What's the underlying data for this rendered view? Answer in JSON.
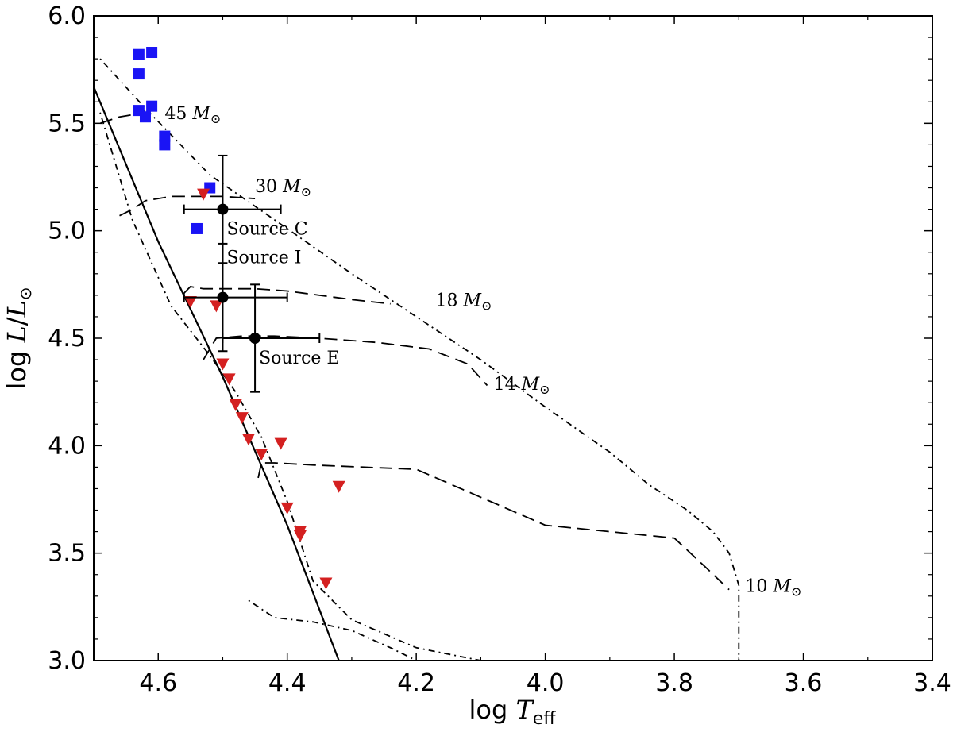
{
  "chart_data": {
    "type": "scatter",
    "title": "",
    "xlabel": {
      "prefix": "log ",
      "var": "T",
      "sub": "eff"
    },
    "ylabel": {
      "prefix": "log ",
      "var": "L",
      "mid": "/",
      "var2": "L",
      "sub": "⊙"
    },
    "xlim": [
      4.7,
      3.4
    ],
    "ylim": [
      3.0,
      6.0
    ],
    "x_ticks": [
      4.6,
      4.4,
      4.2,
      4.0,
      3.8,
      3.6,
      3.4
    ],
    "x_tick_labels": [
      "4.6",
      "4.4",
      "4.2",
      "4.0",
      "3.8",
      "3.6",
      "3.4"
    ],
    "y_ticks": [
      3.0,
      3.5,
      4.0,
      4.5,
      5.0,
      5.5,
      6.0
    ],
    "y_tick_labels": [
      "3.0",
      "3.5",
      "4.0",
      "4.5",
      "5.0",
      "5.5",
      "6.0"
    ],
    "grid": false,
    "colors": {
      "squares": "#1a14f5",
      "triangles": "#d42020",
      "sources": "#000000",
      "lines": "#000000"
    },
    "series": [
      {
        "name": "blue-squares",
        "marker": "square",
        "points": [
          {
            "x": 4.63,
            "y": 5.82
          },
          {
            "x": 4.61,
            "y": 5.83
          },
          {
            "x": 4.63,
            "y": 5.73
          },
          {
            "x": 4.63,
            "y": 5.56
          },
          {
            "x": 4.61,
            "y": 5.58
          },
          {
            "x": 4.62,
            "y": 5.53
          },
          {
            "x": 4.59,
            "y": 5.44
          },
          {
            "x": 4.59,
            "y": 5.4
          },
          {
            "x": 4.52,
            "y": 5.2
          },
          {
            "x": 4.54,
            "y": 5.01
          }
        ]
      },
      {
        "name": "red-triangles",
        "marker": "triangle-down",
        "points": [
          {
            "x": 4.53,
            "y": 5.17
          },
          {
            "x": 4.55,
            "y": 4.67
          },
          {
            "x": 4.51,
            "y": 4.65
          },
          {
            "x": 4.5,
            "y": 4.38
          },
          {
            "x": 4.49,
            "y": 4.31
          },
          {
            "x": 4.48,
            "y": 4.19
          },
          {
            "x": 4.47,
            "y": 4.13
          },
          {
            "x": 4.46,
            "y": 4.03
          },
          {
            "x": 4.41,
            "y": 4.01
          },
          {
            "x": 4.44,
            "y": 3.96
          },
          {
            "x": 4.32,
            "y": 3.81
          },
          {
            "x": 4.4,
            "y": 3.71
          },
          {
            "x": 4.38,
            "y": 3.6
          },
          {
            "x": 4.38,
            "y": 3.58
          },
          {
            "x": 4.34,
            "y": 3.36
          }
        ]
      },
      {
        "name": "sources",
        "marker": "circle",
        "points": [
          {
            "label": "Source C",
            "x": 4.5,
            "y": 5.1,
            "xerr": [
              4.56,
              4.41
            ],
            "yerr": [
              4.85,
              5.35
            ]
          },
          {
            "label": "Source I",
            "x": 4.5,
            "y": 4.69,
            "xerr": [
              4.56,
              4.4
            ],
            "yerr": [
              4.44,
              4.94
            ]
          },
          {
            "label": "Source E",
            "x": 4.45,
            "y": 4.5,
            "xerr": [
              4.5,
              4.35
            ],
            "yerr": [
              4.25,
              4.75
            ]
          }
        ]
      }
    ],
    "lines": [
      {
        "name": "zams-solid",
        "style": "solid",
        "x": [
          4.7,
          4.6,
          4.5,
          4.4,
          4.32
        ],
        "y": [
          5.67,
          4.95,
          4.32,
          3.63,
          3.0
        ]
      },
      {
        "name": "isochrone-dashdot-upper",
        "style": "dashdot",
        "x": [
          4.69,
          4.62,
          4.52,
          4.4,
          4.3,
          4.2,
          4.1,
          4.0,
          3.9,
          3.84,
          3.78,
          3.74,
          3.715,
          3.7,
          3.7
        ],
        "y": [
          5.8,
          5.57,
          5.26,
          5.01,
          4.8,
          4.6,
          4.4,
          4.18,
          3.97,
          3.82,
          3.7,
          3.6,
          3.5,
          3.35,
          3.0
        ]
      },
      {
        "name": "isochrone-dashdot-lower",
        "style": "dashdot",
        "x": [
          4.69,
          4.64,
          4.58,
          4.52,
          4.48,
          4.44,
          4.4,
          4.36,
          4.3,
          4.2,
          4.1,
          4.0,
          3.9,
          3.83,
          3.78,
          3.755,
          3.74
        ],
        "y": [
          5.55,
          5.05,
          4.65,
          4.42,
          4.25,
          4.04,
          3.74,
          3.37,
          3.19,
          3.06,
          3.0,
          3.0,
          3.0,
          3.0,
          3.0,
          3.0,
          3.0
        ]
      },
      {
        "name": "isochrone-dashdot-bottom",
        "style": "dashdot",
        "x": [
          4.46,
          4.42,
          4.36,
          4.3,
          4.24,
          4.2
        ],
        "y": [
          3.28,
          3.2,
          3.18,
          3.14,
          3.06,
          3.0
        ]
      },
      {
        "name": "track-45",
        "style": "dashed",
        "x": [
          4.69,
          4.66,
          4.64,
          4.62
        ],
        "y": [
          5.5,
          5.53,
          5.54,
          5.56
        ]
      },
      {
        "name": "track-30",
        "style": "dashed",
        "x": [
          4.66,
          4.64,
          4.62,
          4.58,
          4.54,
          4.5,
          4.45
        ],
        "y": [
          5.07,
          5.1,
          5.14,
          5.16,
          5.16,
          5.16,
          5.15
        ]
      },
      {
        "name": "track-18",
        "style": "dashed",
        "x": [
          4.56,
          4.55,
          4.53,
          4.5,
          4.45,
          4.4,
          4.3,
          4.24
        ],
        "y": [
          4.71,
          4.74,
          4.73,
          4.73,
          4.73,
          4.72,
          4.68,
          4.66
        ]
      },
      {
        "name": "track-14",
        "style": "dashed",
        "x": [
          4.53,
          4.51,
          4.47,
          4.42,
          4.35,
          4.26,
          4.18,
          4.12,
          4.09
        ],
        "y": [
          4.4,
          4.5,
          4.51,
          4.51,
          4.5,
          4.48,
          4.45,
          4.38,
          4.28
        ]
      },
      {
        "name": "track-10",
        "style": "dashed",
        "x": [
          4.445,
          4.44,
          4.42,
          4.36,
          4.28,
          4.2,
          4.1,
          4.0,
          3.9,
          3.8,
          3.75,
          3.715
        ],
        "y": [
          3.85,
          3.92,
          3.92,
          3.91,
          3.9,
          3.89,
          3.76,
          3.63,
          3.6,
          3.57,
          3.43,
          3.33
        ]
      }
    ],
    "annotations": [
      {
        "text": "45 ",
        "mass": "M",
        "sub": "⊙",
        "x": 4.59,
        "y": 5.52
      },
      {
        "text": "30 ",
        "mass": "M",
        "sub": "⊙",
        "x": 4.45,
        "y": 5.18
      },
      {
        "text": "18 ",
        "mass": "M",
        "sub": "⊙",
        "x": 4.17,
        "y": 4.65
      },
      {
        "text": "14 ",
        "mass": "M",
        "sub": "⊙",
        "x": 4.08,
        "y": 4.26
      },
      {
        "text": "10 ",
        "mass": "M",
        "sub": "⊙",
        "x": 3.69,
        "y": 3.32
      }
    ]
  }
}
